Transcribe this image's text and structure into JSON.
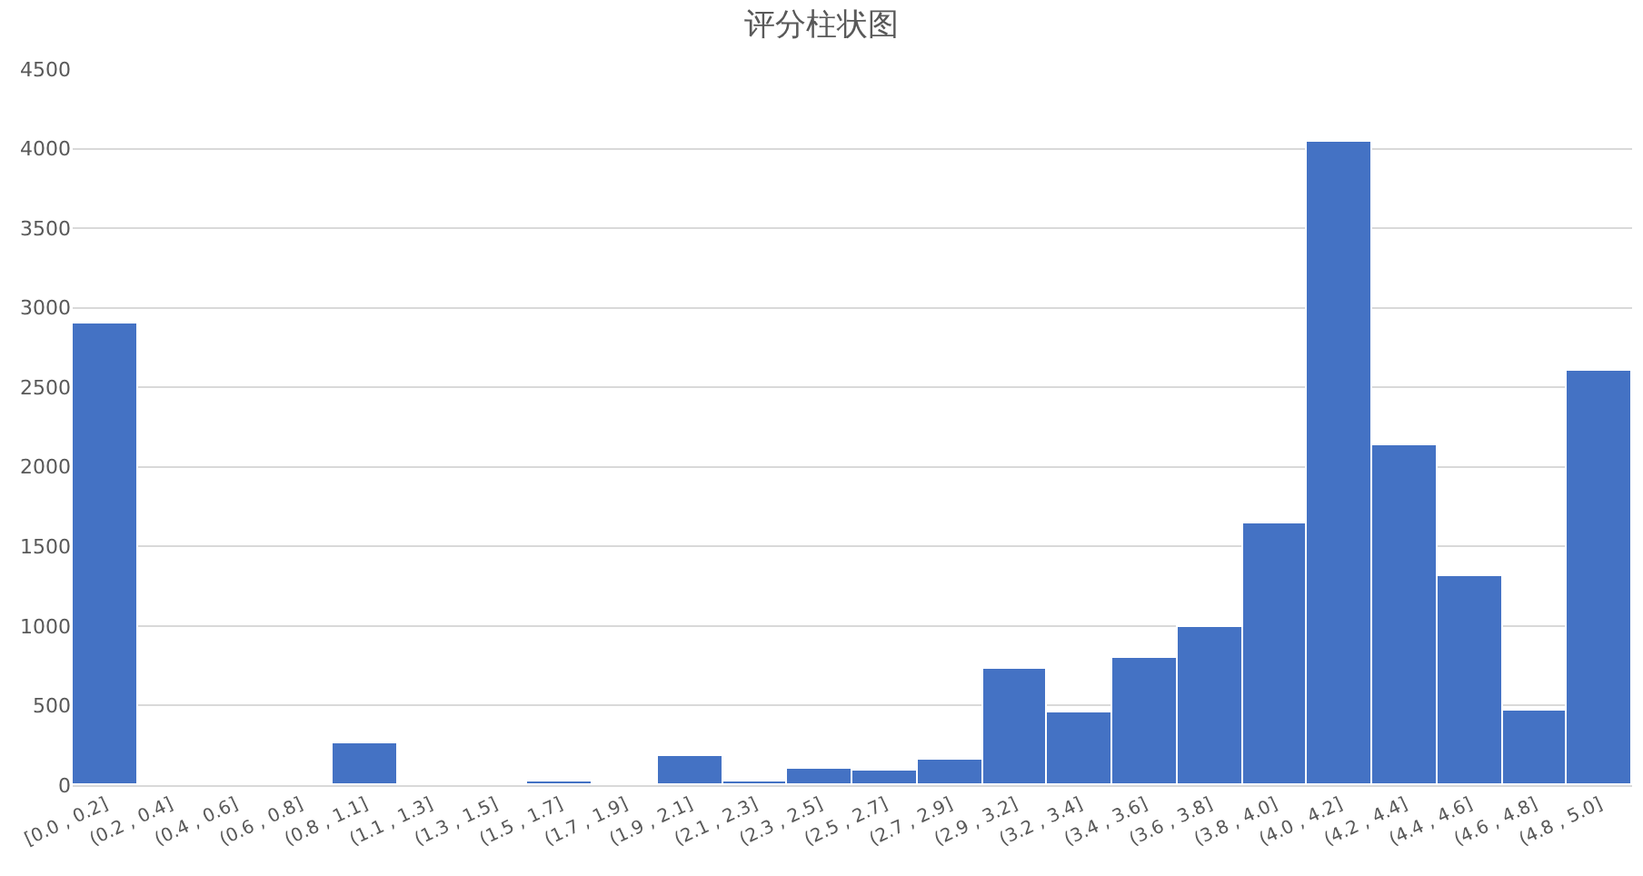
{
  "chart_data": {
    "type": "bar",
    "title": "评分柱状图",
    "categories": [
      "[0.0 , 0.2]",
      "(0.2 , 0.4]",
      "(0.4 , 0.6]",
      "(0.6 , 0.8]",
      "(0.8 , 1.1]",
      "(1.1 , 1.3]",
      "(1.3 , 1.5]",
      "(1.5 , 1.7]",
      "(1.7 , 1.9]",
      "(1.9 , 2.1]",
      "(2.1 , 2.3]",
      "(2.3 , 2.5]",
      "(2.5 , 2.7]",
      "(2.7 , 2.9]",
      "(2.9 , 3.2]",
      "(3.2 , 3.4]",
      "(3.4 , 3.6]",
      "(3.6 , 3.8]",
      "(3.8 , 4.0]",
      "(4.0 , 4.2]",
      "(4.2 , 4.4]",
      "(4.4 , 4.6]",
      "(4.6 , 4.8]",
      "(4.8 , 5.0]"
    ],
    "values": [
      2900,
      0,
      0,
      0,
      260,
      0,
      0,
      25,
      0,
      180,
      25,
      100,
      90,
      160,
      730,
      460,
      800,
      990,
      1645,
      4040,
      2135,
      1310,
      470,
      2600
    ],
    "color": "#4472c4",
    "ylim": [
      0,
      4500
    ],
    "yticks": [
      0,
      500,
      1000,
      1500,
      2000,
      2500,
      3000,
      3500,
      4000,
      4500
    ],
    "grid": "y"
  }
}
